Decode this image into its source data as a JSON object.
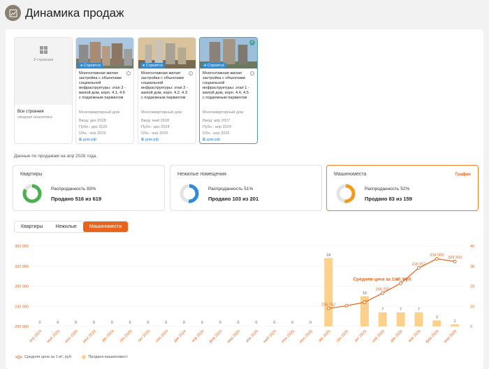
{
  "header": {
    "title": "Динамика продаж",
    "icon": "chart-icon"
  },
  "cards": [
    {
      "type": "all",
      "count": "3 строения",
      "title": "Все строения",
      "subtitle": "сводная аналитика"
    },
    {
      "badge": "Строится",
      "title": "Многоэтажная жилая застройка с объектами социальной инфраструктуры: этап 3 - жилой дом, корп. 4.1, 4.6 с подземным паркингом",
      "kind": "Многоквартирный дом",
      "vvod": "Ввод: дек 2028",
      "publ": "Публ.: дек 2025",
      "obn": "Обн.: апр 2026",
      "link": "дом.рф"
    },
    {
      "badge": "Строится",
      "title": "Многоэтажная жилая застройка с объектами социальной инфраструктуры: этап 2 - жилой дом, корп. 4.2, 4.3 с подземным паркингом",
      "kind": "Многоквартирный дом",
      "vvod": "Ввод: май 2028",
      "publ": "Публ.: дек 2024",
      "obn": "Обн.: апр 2026",
      "link": "дом.рф"
    },
    {
      "badge": "Строится",
      "title": "Многоэтажная жилая застройка с объектами социальной инфраструктуры: этап 1 - жилой дом, корп. 4.4, 4.5 с подземным паркингом",
      "kind": "Многоквартирный дом",
      "vvod": "Ввод: апр 2027",
      "publ": "Публ.: апр 2024",
      "obn": "Обн.: апр 2026",
      "link": "дом.рф"
    }
  ],
  "asof": "Данные по продажам на апр 2026 года.",
  "stats": [
    {
      "label": "Квартиры",
      "pct_text": "Распроданность 83%",
      "sold": "Продано 516 из 619",
      "pct": 0.83,
      "color": "#4caf50"
    },
    {
      "label": "Нежилые помещения",
      "pct_text": "Распроданность 51%",
      "sold": "Продано 103 из 201",
      "pct": 0.51,
      "color": "#2e8bd6"
    },
    {
      "label": "Машиноместа",
      "pct_text": "Распроданность 52%",
      "sold": "Продано 83 из 159",
      "pct": 0.52,
      "color": "#f39a1e",
      "graph": "График"
    }
  ],
  "tabs": [
    "Квартиры",
    "Нежилые",
    "Машиноместа"
  ],
  "chart_data": {
    "type": "bar+line",
    "categories": [
      "апр 2024",
      "май 2024",
      "июн 2024",
      "июл 2024",
      "авг 2024",
      "сен 2024",
      "окт 2024",
      "ноя 2024",
      "дек 2024",
      "янв 2025",
      "фев 2025",
      "мар 2025",
      "апр 2025",
      "май 2025",
      "июн 2025",
      "июл 2025",
      "авг 2025",
      "сен 2025",
      "окт 2025",
      "ноя 2025",
      "дек 2025",
      "янв 2026",
      "фев 2026",
      "мар 2026"
    ],
    "bar_series": {
      "name": "Продано машиномест",
      "values": [
        0,
        0,
        0,
        0,
        0,
        0,
        0,
        0,
        0,
        0,
        0,
        0,
        0,
        0,
        0,
        0,
        34,
        0,
        15,
        7,
        7,
        7,
        3,
        1
      ]
    },
    "bar_labels_shown": [
      "0",
      "0",
      "0",
      "0",
      "0",
      "0",
      "0",
      "0",
      "0",
      "0",
      "0",
      "0",
      "0",
      "0",
      "0",
      "0",
      "34",
      "",
      "15",
      "7",
      "7",
      "7",
      "3",
      "1"
    ],
    "line_series": {
      "name": "Средняя цена за 1 м², руб.",
      "points": [
        [
          16,
          235752
        ],
        [
          17,
          241000
        ],
        [
          18,
          248000
        ],
        [
          19,
          266200
        ],
        [
          20,
          285750
        ],
        [
          21,
          316257
        ],
        [
          22,
          334565
        ],
        [
          23,
          329203
        ]
      ],
      "labels": {
        "16": "235 752",
        "19": "266 200",
        "20": "285 750",
        "21": "316 257",
        "22": "334 565",
        "23": "329 203"
      }
    },
    "line_annotation": "Средняя цена за 1 м², руб.",
    "y_left_ticks": [
      "200 000",
      "240 000",
      "280 000",
      "320 000",
      "360 000"
    ],
    "y_right_ticks": [
      "0",
      "10",
      "20",
      "30",
      "40"
    ],
    "ylim_left": [
      200000,
      360000
    ],
    "ylim_right": [
      0,
      40
    ],
    "colors": {
      "bar": "#fcd18e",
      "line": "#e8641b",
      "tick": "#e8641b"
    }
  },
  "legend": [
    {
      "label": "Средняя цена за 1 м², руб."
    },
    {
      "label": "Продано машиномест"
    }
  ]
}
